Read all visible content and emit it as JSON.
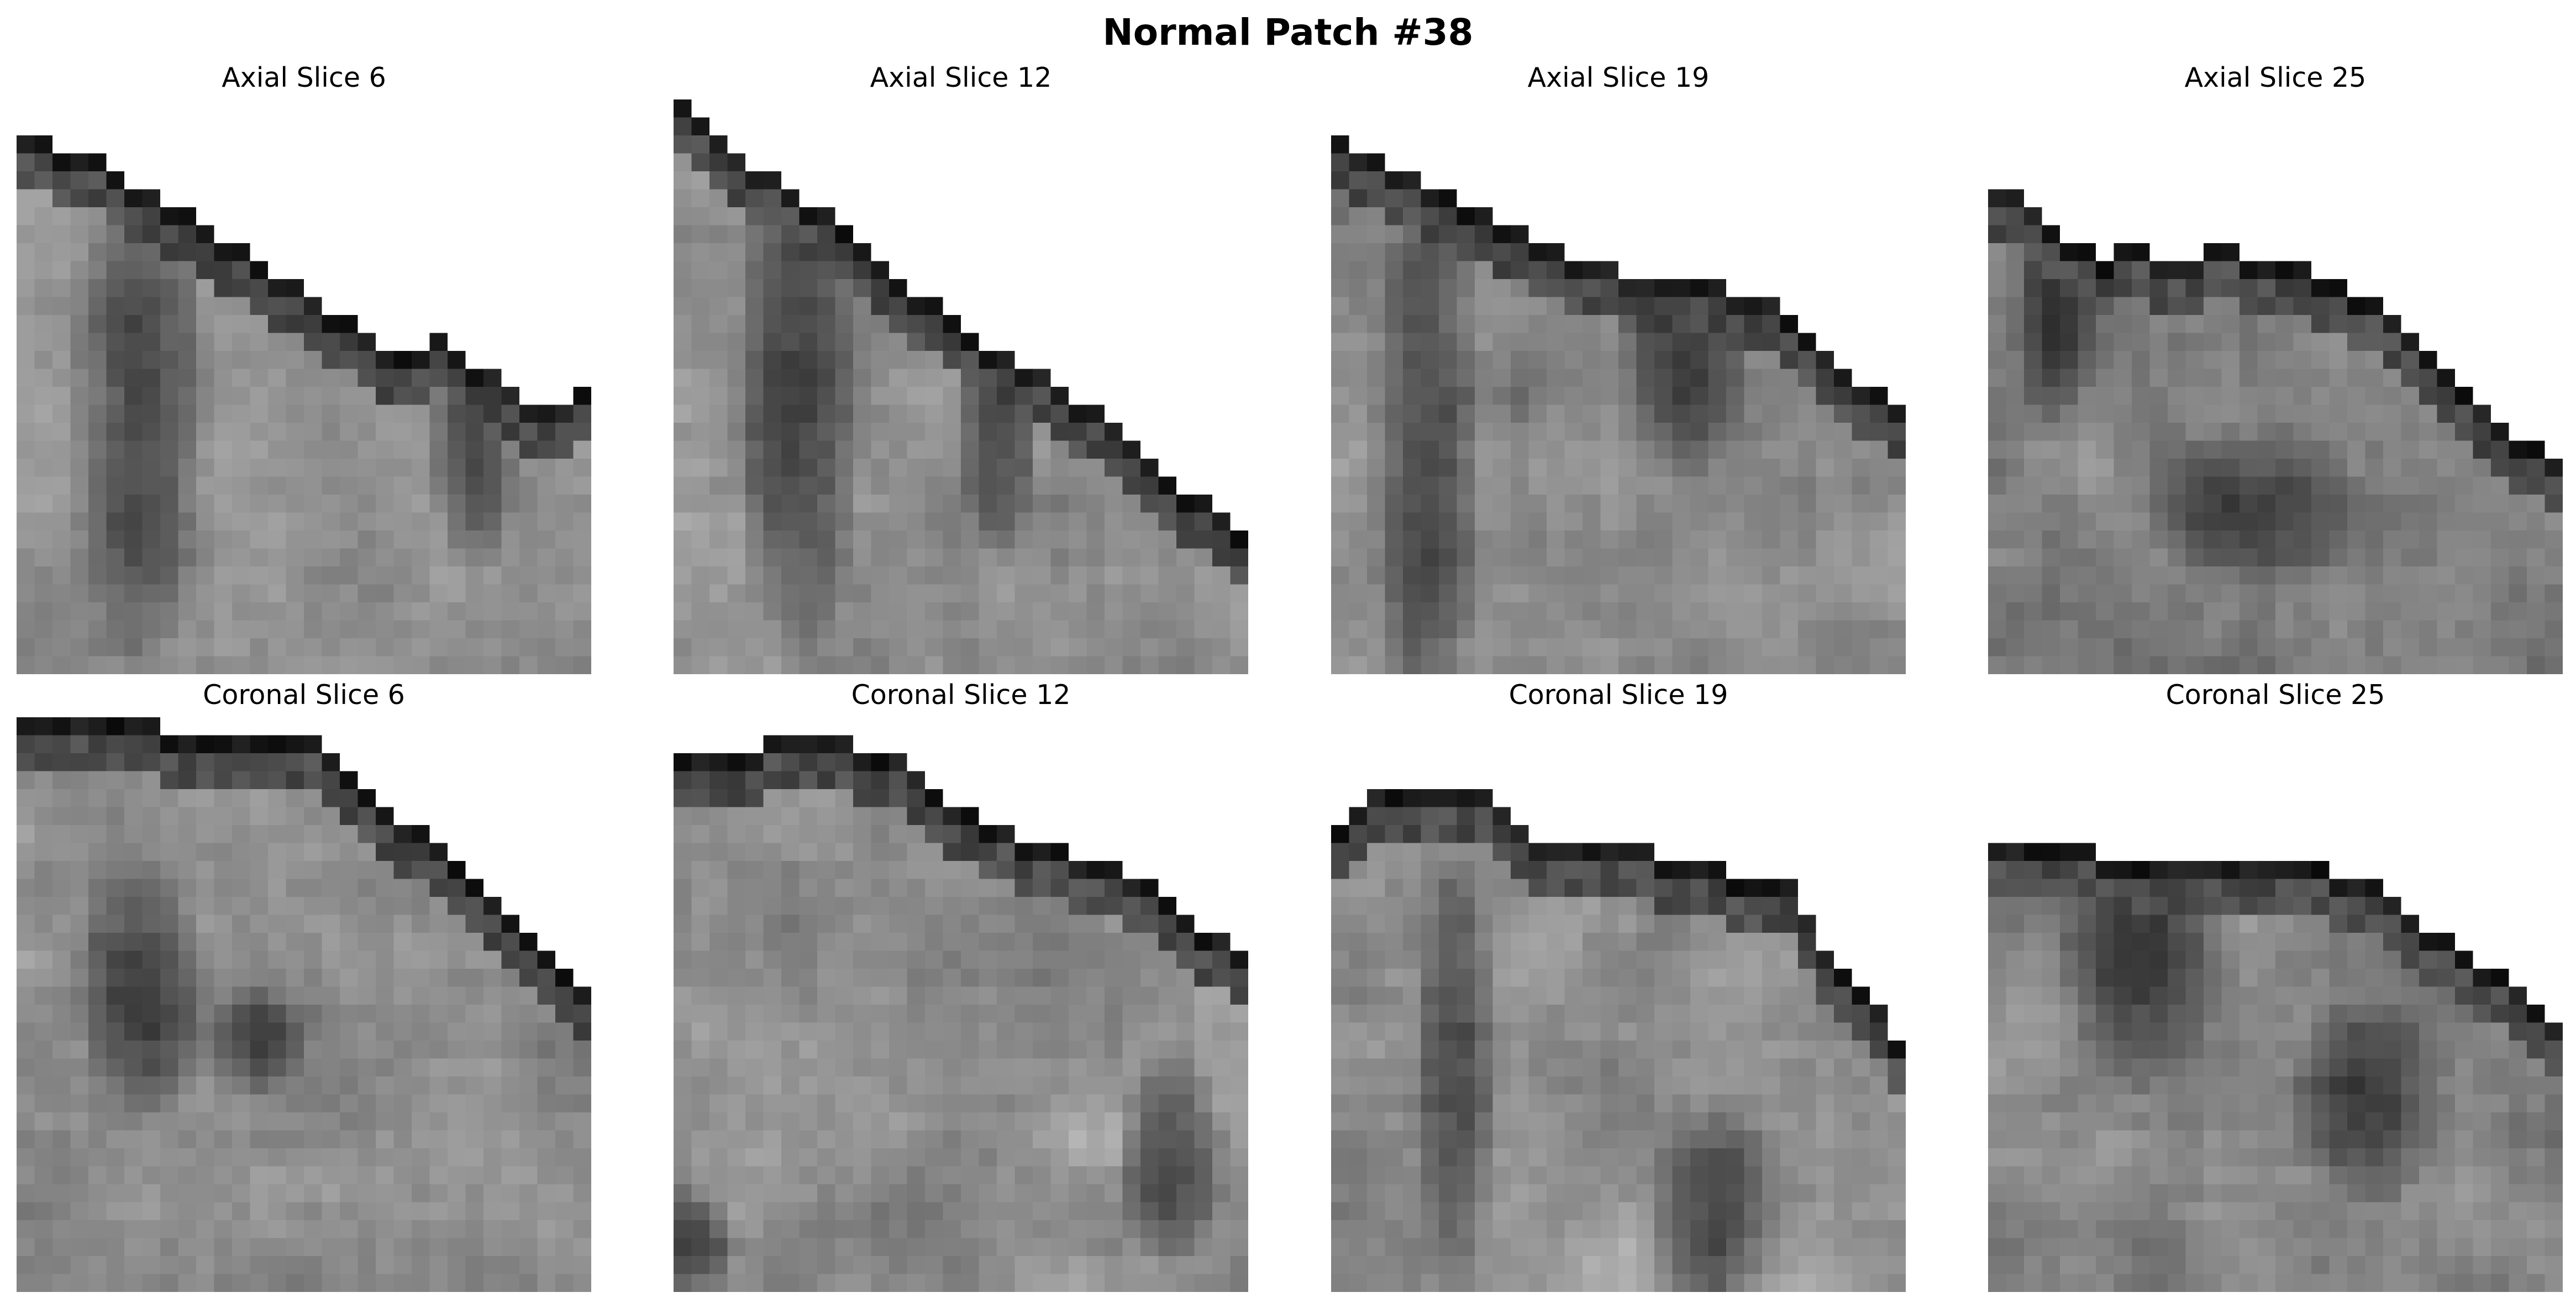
{
  "figure": {
    "title": "Normal Patch #38"
  },
  "panels": [
    {
      "id": "axial-6",
      "label": "Axial Slice 6",
      "view": "axial",
      "slice": 6,
      "seed": 11,
      "edge": [
        2,
        2,
        3,
        3,
        3,
        4,
        5,
        5,
        6,
        6,
        7,
        8,
        8,
        9,
        10,
        10,
        11,
        12,
        12,
        13,
        14,
        14,
        14,
        13,
        14,
        15,
        15,
        16,
        17,
        17,
        17,
        16
      ],
      "folds": [
        [
          0.2,
          0.5,
          0.12,
          0.5
        ],
        [
          0.78,
          0.55,
          0.08,
          0.3
        ]
      ],
      "base": 0.56
    },
    {
      "id": "axial-12",
      "label": "Axial Slice 12",
      "view": "axial",
      "slice": 12,
      "seed": 23,
      "edge": [
        0,
        1,
        2,
        3,
        4,
        4,
        5,
        6,
        6,
        7,
        8,
        9,
        10,
        11,
        11,
        12,
        13,
        14,
        14,
        15,
        15,
        16,
        17,
        17,
        18,
        19,
        20,
        21,
        22,
        22,
        23,
        24
      ],
      "folds": [
        [
          0.2,
          0.5,
          0.12,
          0.5
        ],
        [
          0.55,
          0.5,
          0.08,
          0.3
        ]
      ],
      "base": 0.55
    },
    {
      "id": "axial-19",
      "label": "Axial Slice 19",
      "view": "axial",
      "slice": 19,
      "seed": 37,
      "edge": [
        2,
        3,
        3,
        4,
        4,
        5,
        5,
        6,
        6,
        7,
        7,
        8,
        8,
        9,
        9,
        9,
        10,
        10,
        10,
        10,
        10,
        10,
        11,
        11,
        11,
        12,
        13,
        14,
        15,
        16,
        16,
        17
      ],
      "folds": [
        [
          0.15,
          0.6,
          0.1,
          0.6
        ],
        [
          0.6,
          0.4,
          0.12,
          0.25
        ]
      ],
      "base": 0.54
    },
    {
      "id": "axial-25",
      "label": "Axial Slice 25",
      "view": "axial",
      "slice": 25,
      "seed": 41,
      "edge": [
        5,
        5,
        6,
        7,
        8,
        8,
        9,
        8,
        8,
        9,
        9,
        9,
        8,
        8,
        9,
        9,
        9,
        9,
        10,
        10,
        11,
        11,
        12,
        13,
        14,
        15,
        16,
        17,
        18,
        19,
        19,
        20
      ],
      "folds": [
        [
          0.45,
          0.7,
          0.2,
          0.15
        ],
        [
          0.1,
          0.3,
          0.08,
          0.3
        ]
      ],
      "base": 0.5
    },
    {
      "id": "coronal-6",
      "label": "Coronal Slice 6",
      "view": "coronal",
      "slice": 6,
      "seed": 53,
      "edge": [
        0,
        0,
        0,
        0,
        0,
        0,
        0,
        0,
        1,
        1,
        1,
        1,
        1,
        1,
        1,
        1,
        1,
        2,
        3,
        4,
        5,
        6,
        6,
        7,
        8,
        9,
        10,
        11,
        12,
        13,
        14,
        15
      ],
      "folds": [
        [
          0.2,
          0.45,
          0.12,
          0.25
        ],
        [
          0.4,
          0.55,
          0.1,
          0.1
        ]
      ],
      "base": 0.55
    },
    {
      "id": "coronal-12",
      "label": "Coronal Slice 12",
      "view": "coronal",
      "slice": 12,
      "seed": 67,
      "edge": [
        2,
        2,
        2,
        2,
        2,
        1,
        1,
        1,
        1,
        1,
        2,
        2,
        2,
        3,
        4,
        5,
        5,
        6,
        6,
        7,
        7,
        7,
        8,
        8,
        8,
        9,
        9,
        10,
        11,
        12,
        12,
        13
      ],
      "folds": [
        [
          0.85,
          0.75,
          0.1,
          0.2
        ],
        [
          0.0,
          0.9,
          0.1,
          0.1
        ]
      ],
      "base": 0.56
    },
    {
      "id": "coronal-19",
      "label": "Coronal Slice 19",
      "view": "coronal",
      "slice": 19,
      "seed": 71,
      "edge": [
        6,
        5,
        4,
        4,
        4,
        4,
        4,
        4,
        4,
        5,
        6,
        7,
        7,
        7,
        7,
        7,
        7,
        7,
        8,
        8,
        8,
        8,
        9,
        9,
        9,
        9,
        11,
        13,
        14,
        15,
        16,
        18
      ],
      "folds": [
        [
          0.2,
          0.6,
          0.08,
          0.4
        ],
        [
          0.65,
          0.85,
          0.12,
          0.2
        ]
      ],
      "base": 0.55
    },
    {
      "id": "coronal-25",
      "label": "Coronal Slice 25",
      "view": "coronal",
      "slice": 25,
      "seed": 83,
      "edge": [
        7,
        7,
        7,
        7,
        7,
        7,
        8,
        8,
        8,
        8,
        8,
        8,
        8,
        8,
        8,
        8,
        8,
        8,
        8,
        9,
        9,
        9,
        10,
        11,
        12,
        12,
        13,
        14,
        14,
        15,
        16,
        17
      ],
      "folds": [
        [
          0.25,
          0.4,
          0.15,
          0.25
        ],
        [
          0.65,
          0.65,
          0.15,
          0.2
        ]
      ],
      "base": 0.52
    }
  ]
}
